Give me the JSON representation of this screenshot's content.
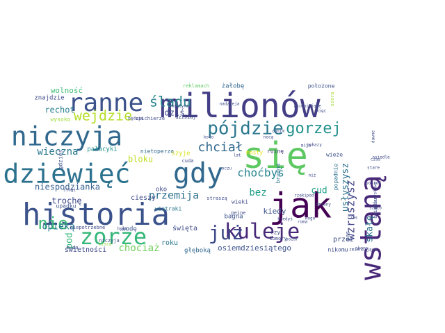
{
  "words": [
    {
      "text": "milionów",
      "color": "#433e85"
    },
    {
      "text": "historia",
      "color": "#3b528b"
    },
    {
      "text": "dziewięć",
      "color": "#2c728e"
    },
    {
      "text": "niczyja",
      "color": "#31688e"
    },
    {
      "text": "się",
      "color": "#5ec962"
    },
    {
      "text": "jak",
      "color": "#440154"
    },
    {
      "text": "ranne",
      "color": "#3b528b"
    },
    {
      "text": "gdy",
      "color": "#31688e"
    },
    {
      "text": "zorze",
      "color": "#35b779"
    },
    {
      "text": "wstaną",
      "color": "#482878"
    },
    {
      "text": "kuleje",
      "color": "#482878"
    },
    {
      "text": "już",
      "color": "#3e4a89"
    },
    {
      "text": "pójdzie",
      "color": "#2a788e"
    },
    {
      "text": "gorzej",
      "color": "#21918c"
    },
    {
      "text": "wejdzie",
      "color": "#b5de2b"
    },
    {
      "text": "nie",
      "color": "#3aba76"
    },
    {
      "text": "śladu",
      "color": "#26828e"
    },
    {
      "text": "chciał",
      "color": "#31688e"
    },
    {
      "text": "choćbyś",
      "color": "#26828e"
    },
    {
      "text": "przemija",
      "color": "#2c728e"
    },
    {
      "text": "niespodzianka",
      "color": "#355f8d"
    },
    {
      "text": "wieczna",
      "color": "#2a788e"
    },
    {
      "text": "rechot",
      "color": "#277f8e"
    },
    {
      "text": "dziś",
      "color": "#3e4a89"
    },
    {
      "text": "bloku",
      "color": "#c0df25"
    },
    {
      "text": "bez",
      "color": "#1f9e89"
    },
    {
      "text": "cud",
      "color": "#1fa187"
    },
    {
      "text": "kiedy",
      "color": "#3b528b"
    },
    {
      "text": "usłyszysz",
      "color": "#2c728e"
    },
    {
      "text": "wzruszysz",
      "color": "#414487"
    },
    {
      "text": "skałę",
      "color": "#2c728e"
    },
    {
      "text": "trochę",
      "color": "#3e4a89"
    },
    {
      "text": "opieką",
      "color": "#2a788e"
    },
    {
      "text": "chociaż",
      "color": "#6ece58"
    },
    {
      "text": "roku",
      "color": "#2a788e"
    },
    {
      "text": "osiemdziesiątego",
      "color": "#3b528b"
    },
    {
      "text": "wolność",
      "color": "#3dbc74"
    },
    {
      "text": "znajdzie",
      "color": "#3e4a89"
    },
    {
      "text": "wysoko",
      "color": "#9fda3a"
    },
    {
      "text": "reklamach",
      "color": "#5ec962"
    },
    {
      "text": "żałobę",
      "color": "#31688e"
    },
    {
      "text": "położone",
      "color": "#3b528b"
    },
    {
      "text": "szara",
      "color": "#a5db36"
    },
    {
      "text": "pałacyki",
      "color": "#20928c"
    },
    {
      "text": "nietoperza",
      "color": "#306a8e"
    },
    {
      "text": "szyje",
      "color": "#d8e219"
    },
    {
      "text": "mosty",
      "color": "#e5e419"
    },
    {
      "text": "ruinę",
      "color": "#46337e"
    },
    {
      "text": "wieże",
      "color": "#3b528b"
    },
    {
      "text": "brudna",
      "color": "#2c728e"
    },
    {
      "text": "popadnie",
      "color": "#2c728e"
    },
    {
      "text": "cieszy",
      "color": "#3e4a89"
    },
    {
      "text": "wiatraki",
      "color": "#2a788e"
    },
    {
      "text": "bagna",
      "color": "#3b528b"
    },
    {
      "text": "peine",
      "color": "#3e4a89"
    },
    {
      "text": "wodę",
      "color": "#3b528b"
    },
    {
      "text": "święta",
      "color": "#3e4a89"
    },
    {
      "text": "głęboką",
      "color": "#31688e"
    },
    {
      "text": "świetności",
      "color": "#3e4a89"
    },
    {
      "text": "przez",
      "color": "#3e4a89"
    },
    {
      "text": "pas",
      "color": "#3b528b"
    },
    {
      "text": "nikomu",
      "color": "#3e4a89"
    },
    {
      "text": "pod",
      "color": "#35b779"
    },
    {
      "text": "gdzieś",
      "color": "#3b528b"
    },
    {
      "text": "upadku",
      "color": "#3b528b"
    },
    {
      "text": "niepotrzebne",
      "color": "#3e4a89"
    },
    {
      "text": "nuda",
      "color": "#3e4a89"
    },
    {
      "text": "było",
      "color": "#3e4a89"
    },
    {
      "text": "oko",
      "color": "#3e4a89"
    },
    {
      "text": "spichierze",
      "color": "#3e4a89"
    },
    {
      "text": "dzisiaj",
      "color": "#3e4a89"
    },
    {
      "text": "będzie",
      "color": "#3e4a89"
    },
    {
      "text": "wieki",
      "color": "#3e4a89"
    },
    {
      "text": "czy",
      "color": "#3e4a89"
    },
    {
      "text": "komory",
      "color": "#3e4a89"
    },
    {
      "text": "straszą",
      "color": "#3e4a89"
    },
    {
      "text": "cuda",
      "color": "#3e4a89"
    },
    {
      "text": "niczyja",
      "color": "#3e4a89"
    },
    {
      "text": "ciszą",
      "color": "#8fd744"
    },
    {
      "text": "stogi",
      "color": "#3e4a89"
    },
    {
      "text": "śmiątynia",
      "color": "#3e4a89"
    },
    {
      "text": "więc",
      "color": "#3e4a89"
    },
    {
      "text": "zmieniające",
      "color": "#3e4a89"
    },
    {
      "text": "kiedyś",
      "color": "#3e4a89"
    },
    {
      "text": "kogo",
      "color": "#3e4a89"
    },
    {
      "text": "roma",
      "color": "#3e4a89"
    },
    {
      "text": "pod",
      "color": "#3e4a89"
    },
    {
      "text": "zmiany",
      "color": "#3e4a89"
    },
    {
      "text": "czas",
      "color": "#3e4a89"
    },
    {
      "text": "przemysłowe",
      "color": "#3e4a89"
    },
    {
      "text": "osiedlu",
      "color": "#3e4a89"
    },
    {
      "text": "mija",
      "color": "#3e4a89"
    },
    {
      "text": "niż",
      "color": "#3e4a89"
    },
    {
      "text": "nadzieja",
      "color": "#3e4a89"
    },
    {
      "text": "koło",
      "color": "#3e4a89"
    },
    {
      "text": "pożar",
      "color": "#3e4a89"
    },
    {
      "text": "lat",
      "color": "#3e4a89"
    },
    {
      "text": "oczu",
      "color": "#3e4a89"
    },
    {
      "text": "rzeki",
      "color": "#3e4a89"
    },
    {
      "text": "pokazy",
      "color": "#3e4a89"
    },
    {
      "text": "nocą",
      "color": "#3e4a89"
    },
    {
      "text": "zanim",
      "color": "#3e4a89"
    },
    {
      "text": "zmieniające",
      "color": "#3e4a89"
    },
    {
      "text": "dawne",
      "color": "#3e4a89"
    },
    {
      "text": "czas",
      "color": "#3e4a89"
    },
    {
      "text": "szkło",
      "color": "#3e4a89"
    },
    {
      "text": "osiedle",
      "color": "#3e4a89"
    },
    {
      "text": "stare",
      "color": "#3e4a89"
    },
    {
      "text": "pośród",
      "color": "#3e4a89"
    },
    {
      "text": "skoro",
      "color": "#3e4a89"
    }
  ]
}
